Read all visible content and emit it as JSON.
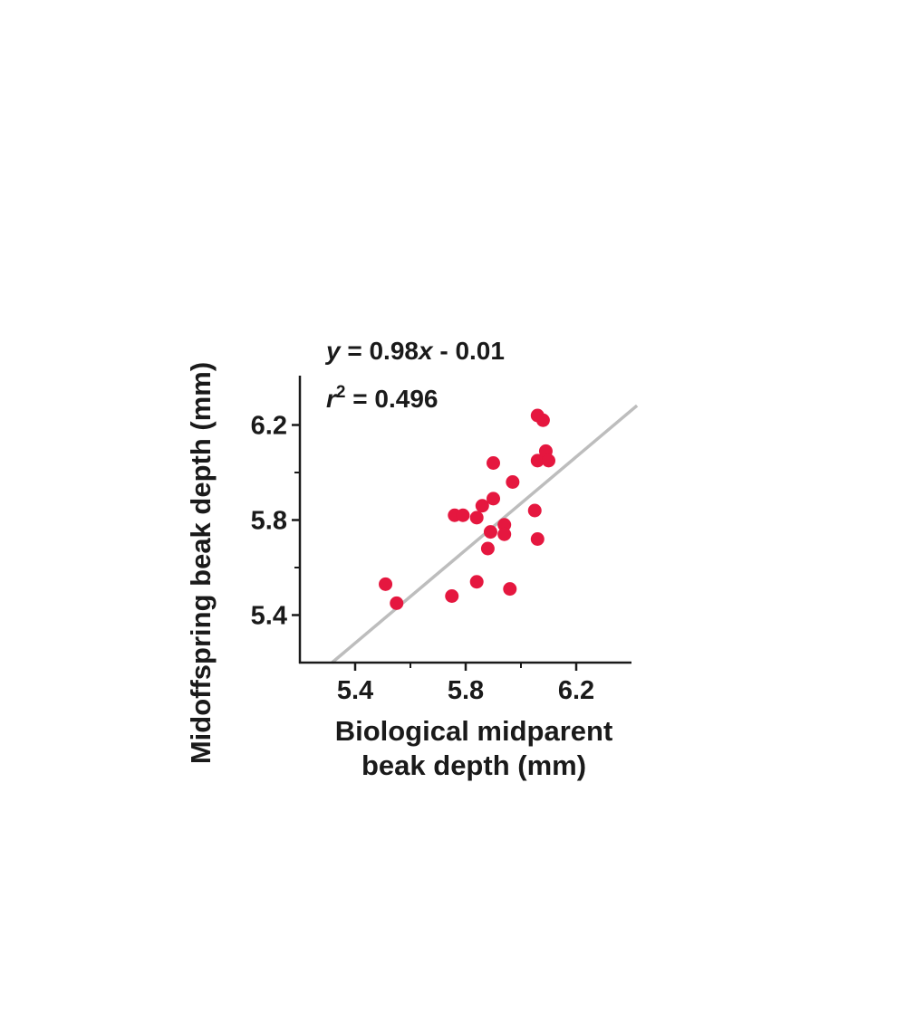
{
  "chart_data": {
    "type": "scatter",
    "title": "",
    "xlabel_lines": [
      "Biological midparent",
      "beak depth (mm)"
    ],
    "ylabel": "Midoffspring beak depth (mm)",
    "xlim": [
      5.2,
      6.4
    ],
    "ylim": [
      5.2,
      6.4
    ],
    "xticks": [
      "5.4",
      "5.8",
      "6.2"
    ],
    "yticks": [
      "5.4",
      "5.8",
      "6.2"
    ],
    "xtick_values": [
      5.4,
      5.8,
      6.2
    ],
    "ytick_values": [
      5.4,
      5.8,
      6.2
    ],
    "minor_tick_values": [
      5.2,
      5.6,
      6.0,
      6.4
    ],
    "grid": false,
    "point_color": "#e5173f",
    "line_color": "#bdbdbd",
    "axis_color": "#1a1a1a",
    "annotations": {
      "equation": {
        "y": "y",
        "eq1": " = 0.98",
        "x": "x",
        "rest": " - 0.01"
      },
      "r2": {
        "r": "r",
        "sup": "2",
        "rest": " = 0.496"
      }
    },
    "regression": {
      "slope": 0.98,
      "intercept": -0.01
    },
    "points": [
      {
        "x": 5.51,
        "y": 5.53
      },
      {
        "x": 5.55,
        "y": 5.45
      },
      {
        "x": 5.75,
        "y": 5.48
      },
      {
        "x": 5.76,
        "y": 5.82
      },
      {
        "x": 5.79,
        "y": 5.82
      },
      {
        "x": 5.84,
        "y": 5.81
      },
      {
        "x": 5.84,
        "y": 5.54
      },
      {
        "x": 5.86,
        "y": 5.86
      },
      {
        "x": 5.88,
        "y": 5.68
      },
      {
        "x": 5.89,
        "y": 5.75
      },
      {
        "x": 5.9,
        "y": 5.89
      },
      {
        "x": 5.9,
        "y": 6.04
      },
      {
        "x": 5.94,
        "y": 5.78
      },
      {
        "x": 5.94,
        "y": 5.74
      },
      {
        "x": 5.96,
        "y": 5.51
      },
      {
        "x": 5.97,
        "y": 5.96
      },
      {
        "x": 6.05,
        "y": 5.84
      },
      {
        "x": 6.06,
        "y": 6.05
      },
      {
        "x": 6.06,
        "y": 5.72
      },
      {
        "x": 6.06,
        "y": 6.24
      },
      {
        "x": 6.08,
        "y": 6.22
      },
      {
        "x": 6.09,
        "y": 6.09
      },
      {
        "x": 6.1,
        "y": 6.05
      }
    ]
  }
}
